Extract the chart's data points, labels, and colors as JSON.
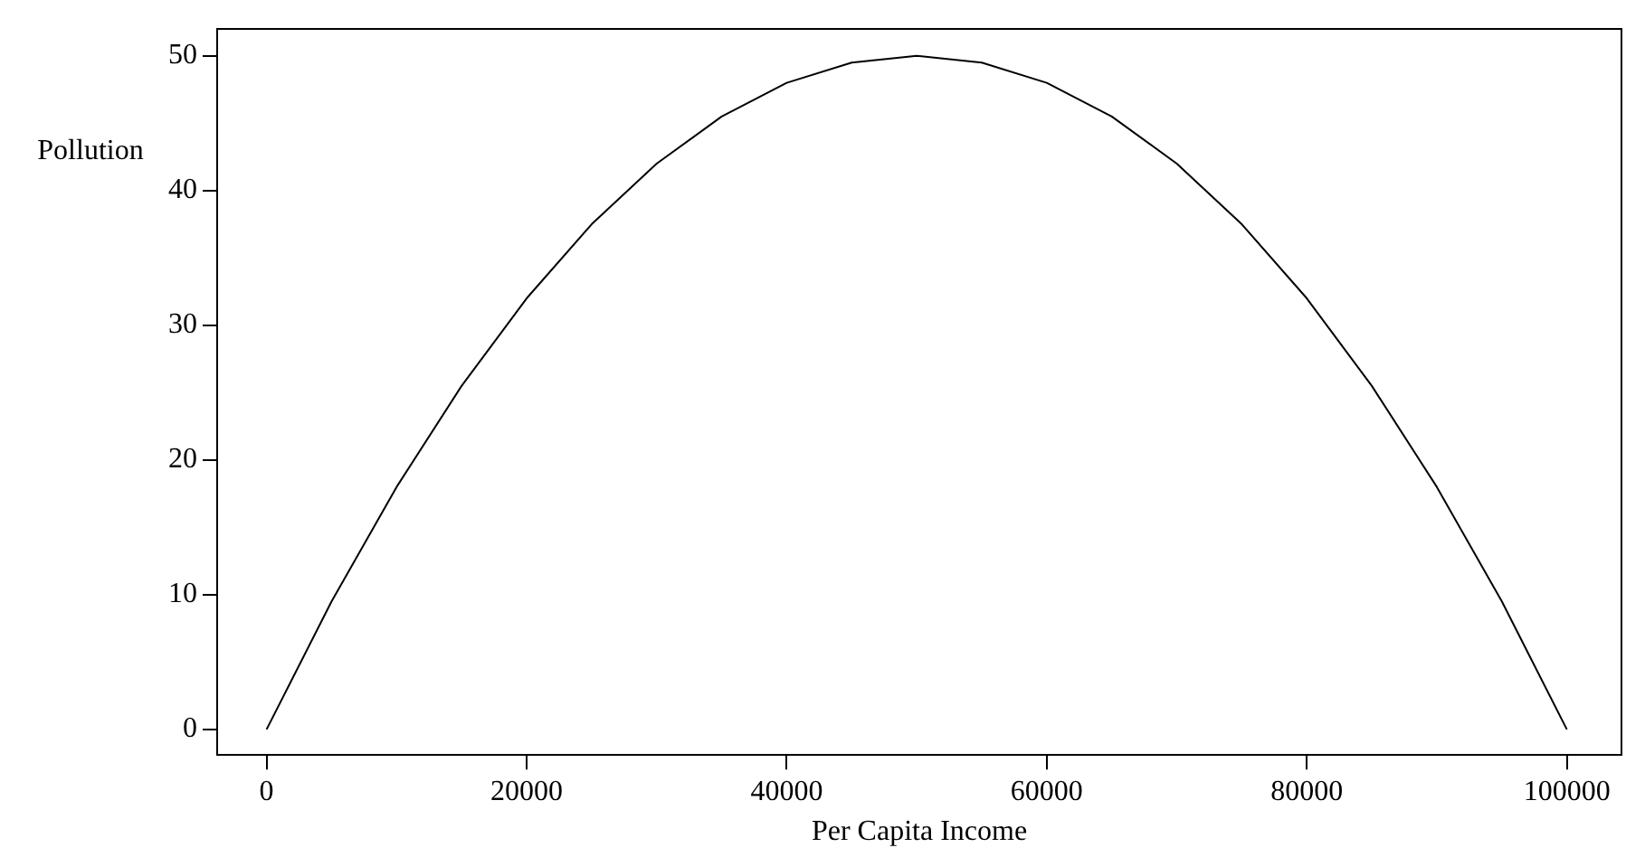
{
  "chart_data": {
    "type": "line",
    "xlabel": "Per Capita Income",
    "ylabel": "Pollution",
    "x": [
      0,
      5000,
      10000,
      15000,
      20000,
      25000,
      30000,
      35000,
      40000,
      45000,
      50000,
      55000,
      60000,
      65000,
      70000,
      75000,
      80000,
      85000,
      90000,
      95000,
      100000
    ],
    "series": [
      {
        "color": "#000000",
        "values": [
          0,
          9.5,
          18,
          25.5,
          32,
          37.5,
          42,
          45.5,
          48,
          49.5,
          50,
          49.5,
          48,
          45.5,
          42,
          37.5,
          32,
          25.5,
          18,
          9.5,
          0
        ]
      }
    ],
    "xlim": [
      -3800,
      104200
    ],
    "xticks": [
      0,
      20000,
      40000,
      60000,
      80000,
      100000
    ],
    "ylim": [
      -1.9,
      52
    ],
    "yticks": [
      0,
      10,
      20,
      30,
      40,
      50
    ],
    "grid": false,
    "legend": false,
    "marker": "none",
    "line_style": "solid"
  }
}
